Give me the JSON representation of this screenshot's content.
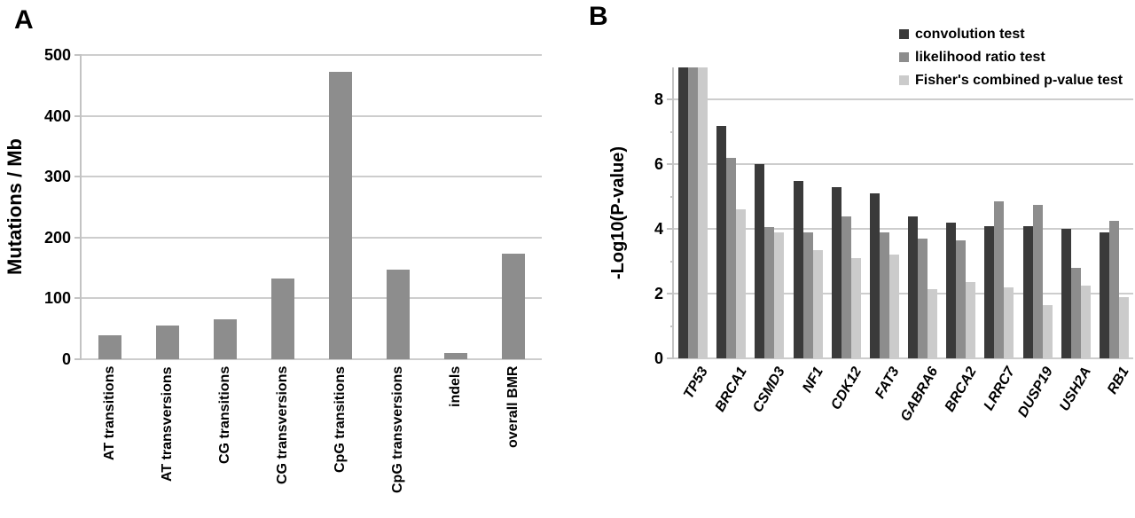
{
  "panels": {
    "a_label": "A",
    "b_label": "B"
  },
  "chart_data": [
    {
      "panel": "A",
      "type": "bar",
      "title": "",
      "xlabel": "",
      "ylabel": "Mutations / Mb",
      "ylim": [
        0,
        500
      ],
      "yticks": [
        0,
        100,
        200,
        300,
        400,
        500
      ],
      "grid": true,
      "bar_color": "#8d8d8d",
      "categories": [
        "AT transitions",
        "AT transversions",
        "CG transitions",
        "CG transversions",
        "CpG transitions",
        "CpG transversions",
        "indels",
        "overall BMR"
      ],
      "values": [
        40,
        55,
        66,
        133,
        473,
        148,
        11,
        174
      ]
    },
    {
      "panel": "B",
      "type": "bar",
      "title": "",
      "xlabel": "",
      "ylabel": "-Log10(P-value)",
      "ylim": [
        0,
        9
      ],
      "yticks": [
        0,
        2,
        4,
        6,
        8
      ],
      "grid": true,
      "legend_position": "top-right",
      "categories": [
        "TP53",
        "BRCA1",
        "CSMD3",
        "NF1",
        "CDK12",
        "FAT3",
        "GABRA6",
        "BRCA2",
        "LRRC7",
        "DUSP19",
        "USH2A",
        "RB1"
      ],
      "series": [
        {
          "name": "convolution test",
          "color": "#3a3a3a",
          "values": [
            9.0,
            7.2,
            6.0,
            5.5,
            5.3,
            5.1,
            4.4,
            4.2,
            4.1,
            4.1,
            4.0,
            3.9
          ]
        },
        {
          "name": "likelihood ratio test",
          "color": "#8d8d8d",
          "values": [
            9.0,
            6.2,
            4.05,
            3.9,
            4.4,
            3.9,
            3.7,
            3.65,
            4.85,
            4.75,
            2.8,
            4.25
          ]
        },
        {
          "name": "Fisher's combined p-value test",
          "color": "#cbcbcb",
          "values": [
            9.0,
            4.6,
            3.9,
            3.35,
            3.1,
            3.2,
            2.15,
            2.35,
            2.2,
            1.65,
            2.25,
            1.9
          ]
        }
      ]
    }
  ],
  "colors": {
    "background": "#ffffff",
    "gridline": "#cdcdcd",
    "axis": "#c3c3c3",
    "text": "#000000"
  }
}
